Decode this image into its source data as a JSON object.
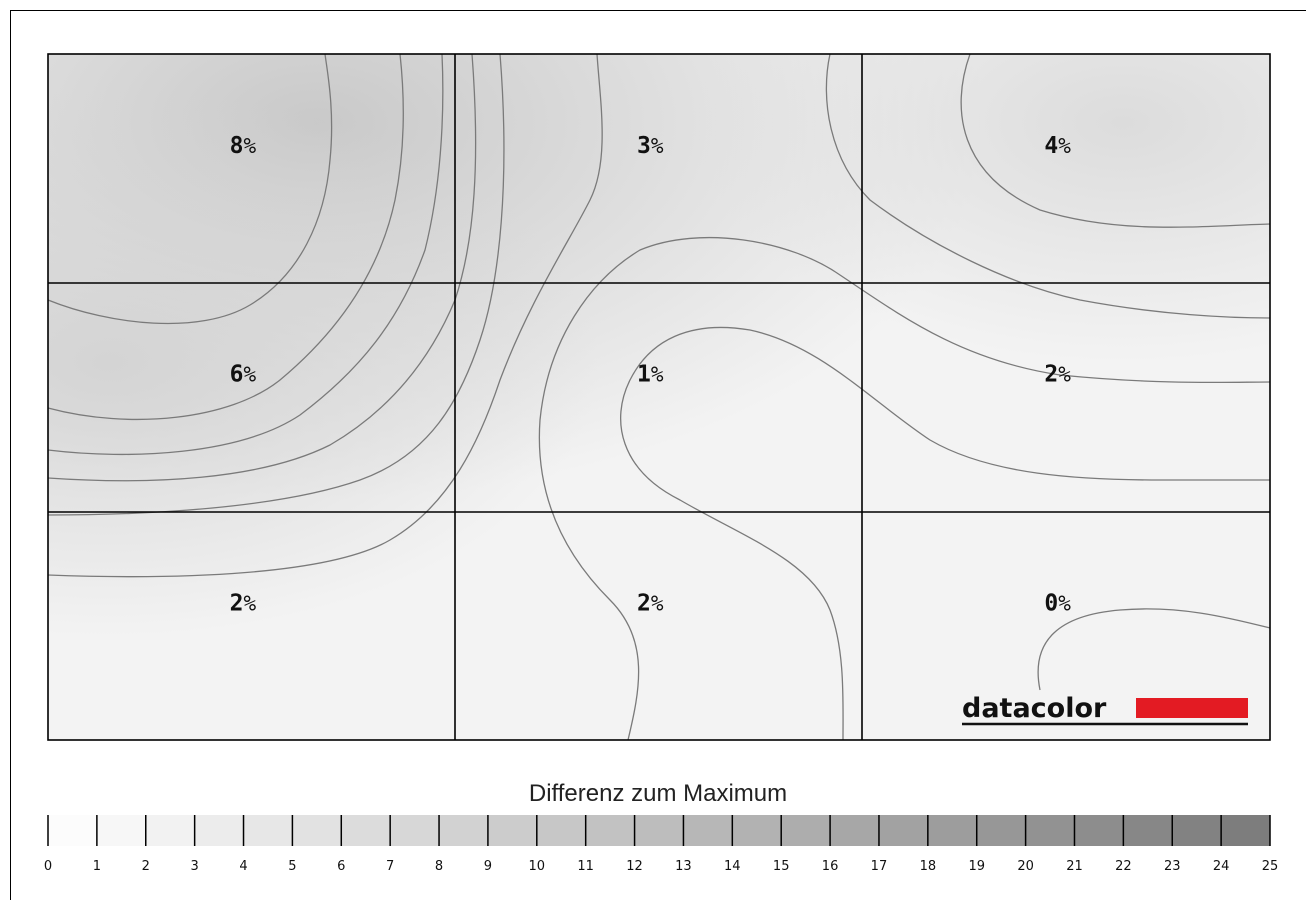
{
  "chart_data": {
    "type": "heatmap",
    "title": "",
    "rows": 3,
    "cols": 3,
    "values": [
      [
        8,
        3,
        4
      ],
      [
        6,
        1,
        2
      ],
      [
        2,
        2,
        0
      ]
    ],
    "unit": "%",
    "legend": {
      "title": "Differenz zum Maximum",
      "min": 0,
      "max": 25,
      "ticks": [
        "0",
        "1",
        "2",
        "3",
        "4",
        "5",
        "6",
        "7",
        "8",
        "9",
        "10",
        "11",
        "12",
        "13",
        "14",
        "15",
        "16",
        "17",
        "18",
        "19",
        "20",
        "21",
        "22",
        "23",
        "24",
        "25"
      ]
    },
    "logo": "datacolor",
    "colors": {
      "low": "#ffffff",
      "high": "#7a7a7a",
      "logo_bar": "#e31b23",
      "grid": "#000000",
      "contour": "#777777"
    }
  }
}
